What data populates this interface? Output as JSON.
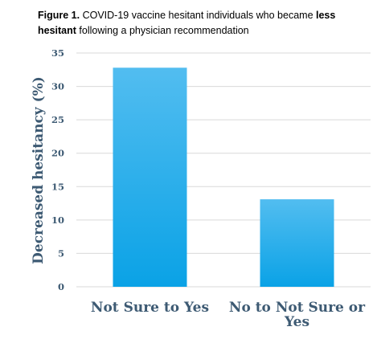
{
  "caption": {
    "prefix": "Figure 1.",
    "text_a": " COVID-19 vaccine hesitant individuals who became ",
    "bold": "less hesitant",
    "text_b": " following a physician recommendation"
  },
  "chart_data": {
    "type": "bar",
    "categories": [
      [
        "Not Sure to Yes"
      ],
      [
        "No to Not Sure or",
        "Yes"
      ]
    ],
    "values": [
      32.8,
      13.1
    ],
    "title": "",
    "xlabel": "",
    "ylabel": "Decreased hesitancy (%)",
    "ylim": [
      0,
      35
    ],
    "yticks": [
      0,
      5,
      10,
      15,
      20,
      25,
      30,
      35
    ],
    "grid": true,
    "legend": "none",
    "colors": {
      "bar_top": "#52bdf0",
      "bar_bottom": "#0aa2e6",
      "grid": "#d9d9d9",
      "text": "#3d5a73"
    }
  }
}
